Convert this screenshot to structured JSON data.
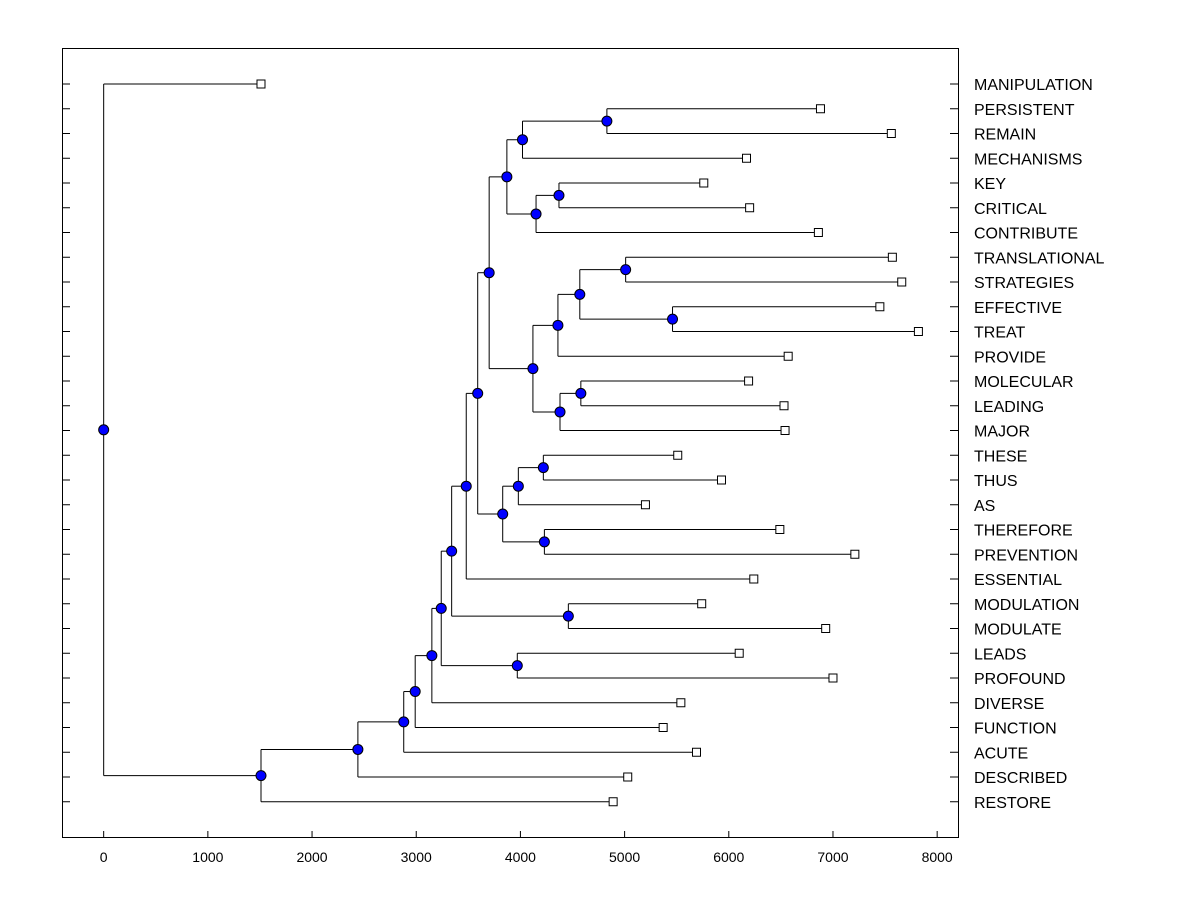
{
  "chart_data": {
    "type": "dendrogram",
    "title": "",
    "xlabel": "",
    "ylabel": "",
    "xlim": [
      -400,
      8200
    ],
    "x_ticks": [
      0,
      1000,
      2000,
      3000,
      4000,
      5000,
      6000,
      7000,
      8000
    ],
    "grid": false,
    "legend": "none",
    "colors": {
      "internal_node": "#0000ff",
      "leaf_node": "#ffffff",
      "line": "#000000"
    },
    "leaves": [
      {
        "label": "MANIPULATION",
        "x": 1510
      },
      {
        "label": "PERSISTENT",
        "x": 6880
      },
      {
        "label": "REMAIN",
        "x": 7560
      },
      {
        "label": "MECHANISMS",
        "x": 6170
      },
      {
        "label": "KEY",
        "x": 5760
      },
      {
        "label": "CRITICAL",
        "x": 6200
      },
      {
        "label": "CONTRIBUTE",
        "x": 6860
      },
      {
        "label": "TRANSLATIONAL",
        "x": 7570
      },
      {
        "label": "STRATEGIES",
        "x": 7660
      },
      {
        "label": "EFFECTIVE",
        "x": 7450
      },
      {
        "label": "TREAT",
        "x": 7820
      },
      {
        "label": "PROVIDE",
        "x": 6570
      },
      {
        "label": "MOLECULAR",
        "x": 6190
      },
      {
        "label": "LEADING",
        "x": 6530
      },
      {
        "label": "MAJOR",
        "x": 6540
      },
      {
        "label": "THESE",
        "x": 5510
      },
      {
        "label": "THUS",
        "x": 5930
      },
      {
        "label": "AS",
        "x": 5200
      },
      {
        "label": "THEREFORE",
        "x": 6490
      },
      {
        "label": "PREVENTION",
        "x": 7210
      },
      {
        "label": "ESSENTIAL",
        "x": 6240
      },
      {
        "label": "MODULATION",
        "x": 5740
      },
      {
        "label": "MODULATE",
        "x": 6930
      },
      {
        "label": "LEADS",
        "x": 6100
      },
      {
        "label": "PROFOUND",
        "x": 7000
      },
      {
        "label": "DIVERSE",
        "x": 5540
      },
      {
        "label": "FUNCTION",
        "x": 5370
      },
      {
        "label": "ACUTE",
        "x": 5690
      },
      {
        "label": "DESCRIBED",
        "x": 5030
      },
      {
        "label": "RESTORE",
        "x": 4890
      }
    ],
    "merges": [
      {
        "x": 4830,
        "children": [
          "L1",
          "L2"
        ]
      },
      {
        "x": 4020,
        "children": [
          "M0",
          "L3"
        ]
      },
      {
        "x": 4370,
        "children": [
          "L4",
          "L5"
        ]
      },
      {
        "x": 4150,
        "children": [
          "M2",
          "L6"
        ]
      },
      {
        "x": 3870,
        "children": [
          "M1",
          "M3"
        ]
      },
      {
        "x": 5010,
        "children": [
          "L7",
          "L8"
        ]
      },
      {
        "x": 5460,
        "children": [
          "L9",
          "L10"
        ]
      },
      {
        "x": 4570,
        "children": [
          "M5",
          "M6"
        ]
      },
      {
        "x": 4360,
        "children": [
          "M7",
          "L11"
        ]
      },
      {
        "x": 4580,
        "children": [
          "L12",
          "L13"
        ]
      },
      {
        "x": 4380,
        "children": [
          "M9",
          "L14"
        ]
      },
      {
        "x": 4120,
        "children": [
          "M8",
          "M10"
        ]
      },
      {
        "x": 3700,
        "children": [
          "M4",
          "M11"
        ]
      },
      {
        "x": 4220,
        "children": [
          "L15",
          "L16"
        ]
      },
      {
        "x": 3980,
        "children": [
          "M13",
          "L17"
        ]
      },
      {
        "x": 4230,
        "children": [
          "L18",
          "L19"
        ]
      },
      {
        "x": 3830,
        "children": [
          "M14",
          "M15"
        ]
      },
      {
        "x": 3590,
        "children": [
          "M12",
          "M16"
        ]
      },
      {
        "x": 3480,
        "children": [
          "M17",
          "L20"
        ]
      },
      {
        "x": 4460,
        "children": [
          "L21",
          "L22"
        ]
      },
      {
        "x": 3340,
        "children": [
          "M18",
          "M19"
        ]
      },
      {
        "x": 3970,
        "children": [
          "L23",
          "L24"
        ]
      },
      {
        "x": 3240,
        "children": [
          "M20",
          "M21"
        ]
      },
      {
        "x": 3150,
        "children": [
          "M22",
          "L25"
        ]
      },
      {
        "x": 2990,
        "children": [
          "M23",
          "L26"
        ]
      },
      {
        "x": 2880,
        "children": [
          "M24",
          "L27"
        ]
      },
      {
        "x": 2440,
        "children": [
          "M25",
          "L28"
        ]
      },
      {
        "x": 1510,
        "children": [
          "M26",
          "L29"
        ]
      },
      {
        "x": 0,
        "children": [
          "L0",
          "M27"
        ]
      }
    ]
  }
}
